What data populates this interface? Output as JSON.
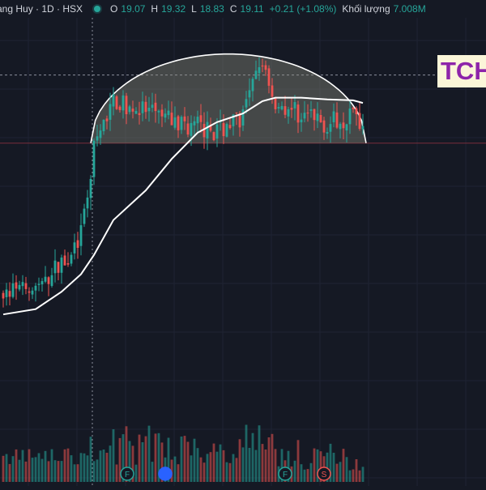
{
  "header": {
    "title": "ang Huy · 1D · HSX",
    "open_label": "O",
    "open_value": "19.07",
    "high_label": "H",
    "high_value": "19.32",
    "low_label": "L",
    "low_value": "18.83",
    "close_label": "C",
    "close_value": "19.11",
    "change": "+0.21 (+1.08%)",
    "volume_label": "Khối lượng",
    "volume_value": "7.008M"
  },
  "badge": {
    "text": "TCH"
  },
  "colors": {
    "background": "#151924",
    "up": "#26a69a",
    "down": "#ef5350",
    "grid": "#1f2433",
    "ma_line": "#ffffff",
    "dome_fill": "#8f8f80",
    "badge_bg": "#fbf6d9",
    "badge_text": "#8e24aa"
  },
  "events": [
    {
      "label": "F",
      "color": "#26a69a"
    },
    {
      "label": "",
      "color": "#2962ff"
    },
    {
      "label": "F",
      "color": "#26a69a"
    },
    {
      "label": "S",
      "color": "#ef5350"
    }
  ],
  "chart_data": {
    "type": "candlestick",
    "price_range": [
      5,
      24
    ],
    "volume_range": [
      0,
      10
    ],
    "horizontal_line": 17.2,
    "dashed_level": 21.1,
    "dome": {
      "x_start": 28,
      "x_end": 112,
      "base_price": 17.2,
      "peak_price": 22.3
    },
    "segments": [
      {
        "from": 0,
        "to": 12,
        "start": 8.5,
        "end": 9.0,
        "vol": [
          1.5,
          3.0
        ]
      },
      {
        "from": 12,
        "to": 24,
        "start": 9.0,
        "end": 11.8,
        "vol": [
          1.5,
          3.0
        ]
      },
      {
        "from": 24,
        "to": 28,
        "start": 11.8,
        "end": 16.8,
        "vol": [
          1.5,
          4.0
        ]
      },
      {
        "from": 28,
        "to": 34,
        "start": 16.8,
        "end": 19.6,
        "vol": [
          1.5,
          4.0
        ]
      },
      {
        "from": 34,
        "to": 52,
        "start": 19.6,
        "end": 18.5,
        "vol": [
          1.5,
          5.0
        ]
      },
      {
        "from": 52,
        "to": 65,
        "start": 18.5,
        "end": 17.9,
        "vol": [
          1.5,
          5.0
        ]
      },
      {
        "from": 65,
        "to": 74,
        "start": 17.9,
        "end": 18.8,
        "vol": [
          1.5,
          4.5
        ]
      },
      {
        "from": 74,
        "to": 80,
        "start": 18.8,
        "end": 22.0,
        "vol": [
          2.0,
          5.5
        ]
      },
      {
        "from": 80,
        "to": 84,
        "start": 22.0,
        "end": 19.5,
        "vol": [
          2.0,
          5.5
        ]
      },
      {
        "from": 84,
        "to": 100,
        "start": 19.5,
        "end": 18.3,
        "vol": [
          1.0,
          4.0
        ]
      },
      {
        "from": 100,
        "to": 108,
        "start": 18.3,
        "end": 18.9,
        "vol": [
          1.0,
          3.5
        ]
      },
      {
        "from": 108,
        "to": 112,
        "start": 18.9,
        "end": 18.0,
        "vol": [
          0.5,
          2.0
        ]
      }
    ],
    "ma": [
      [
        0,
        7.4
      ],
      [
        10,
        7.7
      ],
      [
        18,
        8.7
      ],
      [
        24,
        9.7
      ],
      [
        28,
        10.8
      ],
      [
        34,
        12.8
      ],
      [
        44,
        14.5
      ],
      [
        52,
        16.3
      ],
      [
        60,
        17.8
      ],
      [
        66,
        18.4
      ],
      [
        74,
        18.9
      ],
      [
        80,
        19.6
      ],
      [
        84,
        19.8
      ],
      [
        92,
        19.8
      ],
      [
        100,
        19.7
      ],
      [
        108,
        19.65
      ],
      [
        111,
        19.5
      ]
    ]
  }
}
